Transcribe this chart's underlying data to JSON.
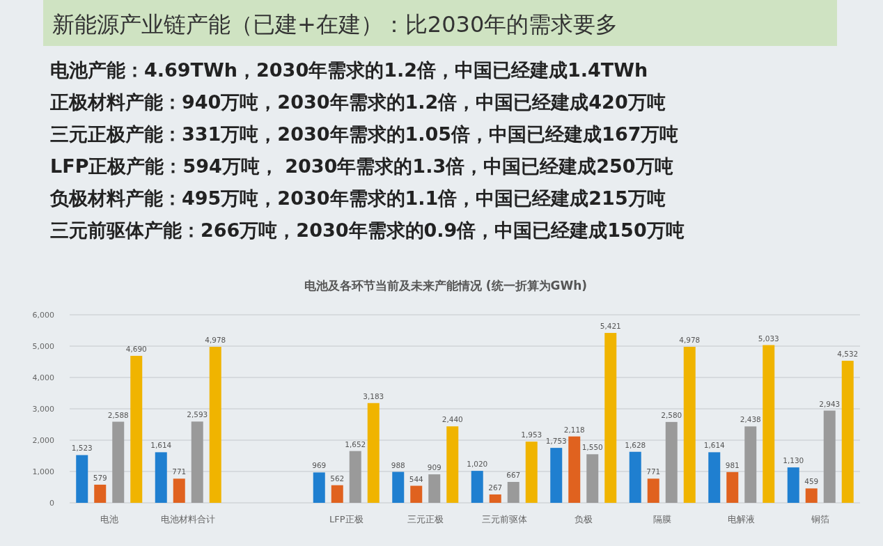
{
  "chart_data": {
    "type": "bar",
    "title": "新能源产业链产能（已建+在建）：比2030年的需求要多",
    "subtitle": "电池及各环节当前及未来产能情况 (统一折算为GWh)",
    "annotations": [
      "电池产能：4.69TWh，2030年需求的1.2倍，中国已经建成1.4TWh",
      "正极材料产能：940万吨，2030年需求的1.2倍，中国已经建成420万吨",
      "三元正极产能：331万吨，2030年需求的1.05倍，中国已经建成167万吨",
      "LFP正极产能：594万吨， 2030年需求的1.3倍，中国已经建成250万吨",
      "负极材料产能：495万吨，2030年需求的1.1倍，中国已经建成215万吨",
      "三元前驱体产能：266万吨，2030年需求的0.9倍，中国已经建成150万吨"
    ],
    "categories": [
      "电池",
      "电池材料合计",
      null,
      "LFP正极",
      "三元正极",
      "三元前驱体",
      "负极",
      "隔膜",
      "电解液",
      "铜箔"
    ],
    "series": [
      {
        "color": "#1f7fd0",
        "values": [
          1523,
          1614,
          null,
          969,
          988,
          1020,
          1753,
          1628,
          1614,
          1130
        ],
        "value_labels": [
          "1,523",
          "1,614",
          null,
          "969",
          "988",
          "1,020",
          "1,753",
          "1,628",
          "1,614",
          "1,130"
        ]
      },
      {
        "color": "#e0621f",
        "values": [
          579,
          771,
          null,
          562,
          544,
          267,
          2118,
          771,
          981,
          459
        ],
        "value_labels": [
          "579",
          "771",
          null,
          "562",
          "544",
          "267",
          "2,118",
          "771",
          "981",
          "459"
        ]
      },
      {
        "color": "#9a9a9a",
        "values": [
          2588,
          2593,
          null,
          1652,
          909,
          667,
          1550,
          2580,
          2438,
          2943
        ],
        "value_labels": [
          "2,588",
          "2,593",
          null,
          "1,652",
          "909",
          "667",
          "1,550",
          "2,580",
          "2,438",
          "2,943"
        ]
      },
      {
        "color": "#f0b400",
        "values": [
          4690,
          4978,
          null,
          3183,
          2440,
          1953,
          5421,
          4978,
          5033,
          4532
        ],
        "value_labels": [
          "4,690",
          "4,978",
          null,
          "3,183",
          "2,440",
          "1,953",
          "5,421",
          "4,978",
          "5,033",
          "4,532"
        ]
      }
    ],
    "ylim": [
      0,
      6000
    ],
    "yticks": [
      {
        "value": 0,
        "label": "0"
      },
      {
        "value": 1000,
        "label": "1,000"
      },
      {
        "value": 2000,
        "label": "2,000"
      },
      {
        "value": 3000,
        "label": "3,000"
      },
      {
        "value": 4000,
        "label": "4,000"
      },
      {
        "value": 5000,
        "label": "5,000"
      },
      {
        "value": 6000,
        "label": "6,000"
      }
    ],
    "grid": "y"
  }
}
